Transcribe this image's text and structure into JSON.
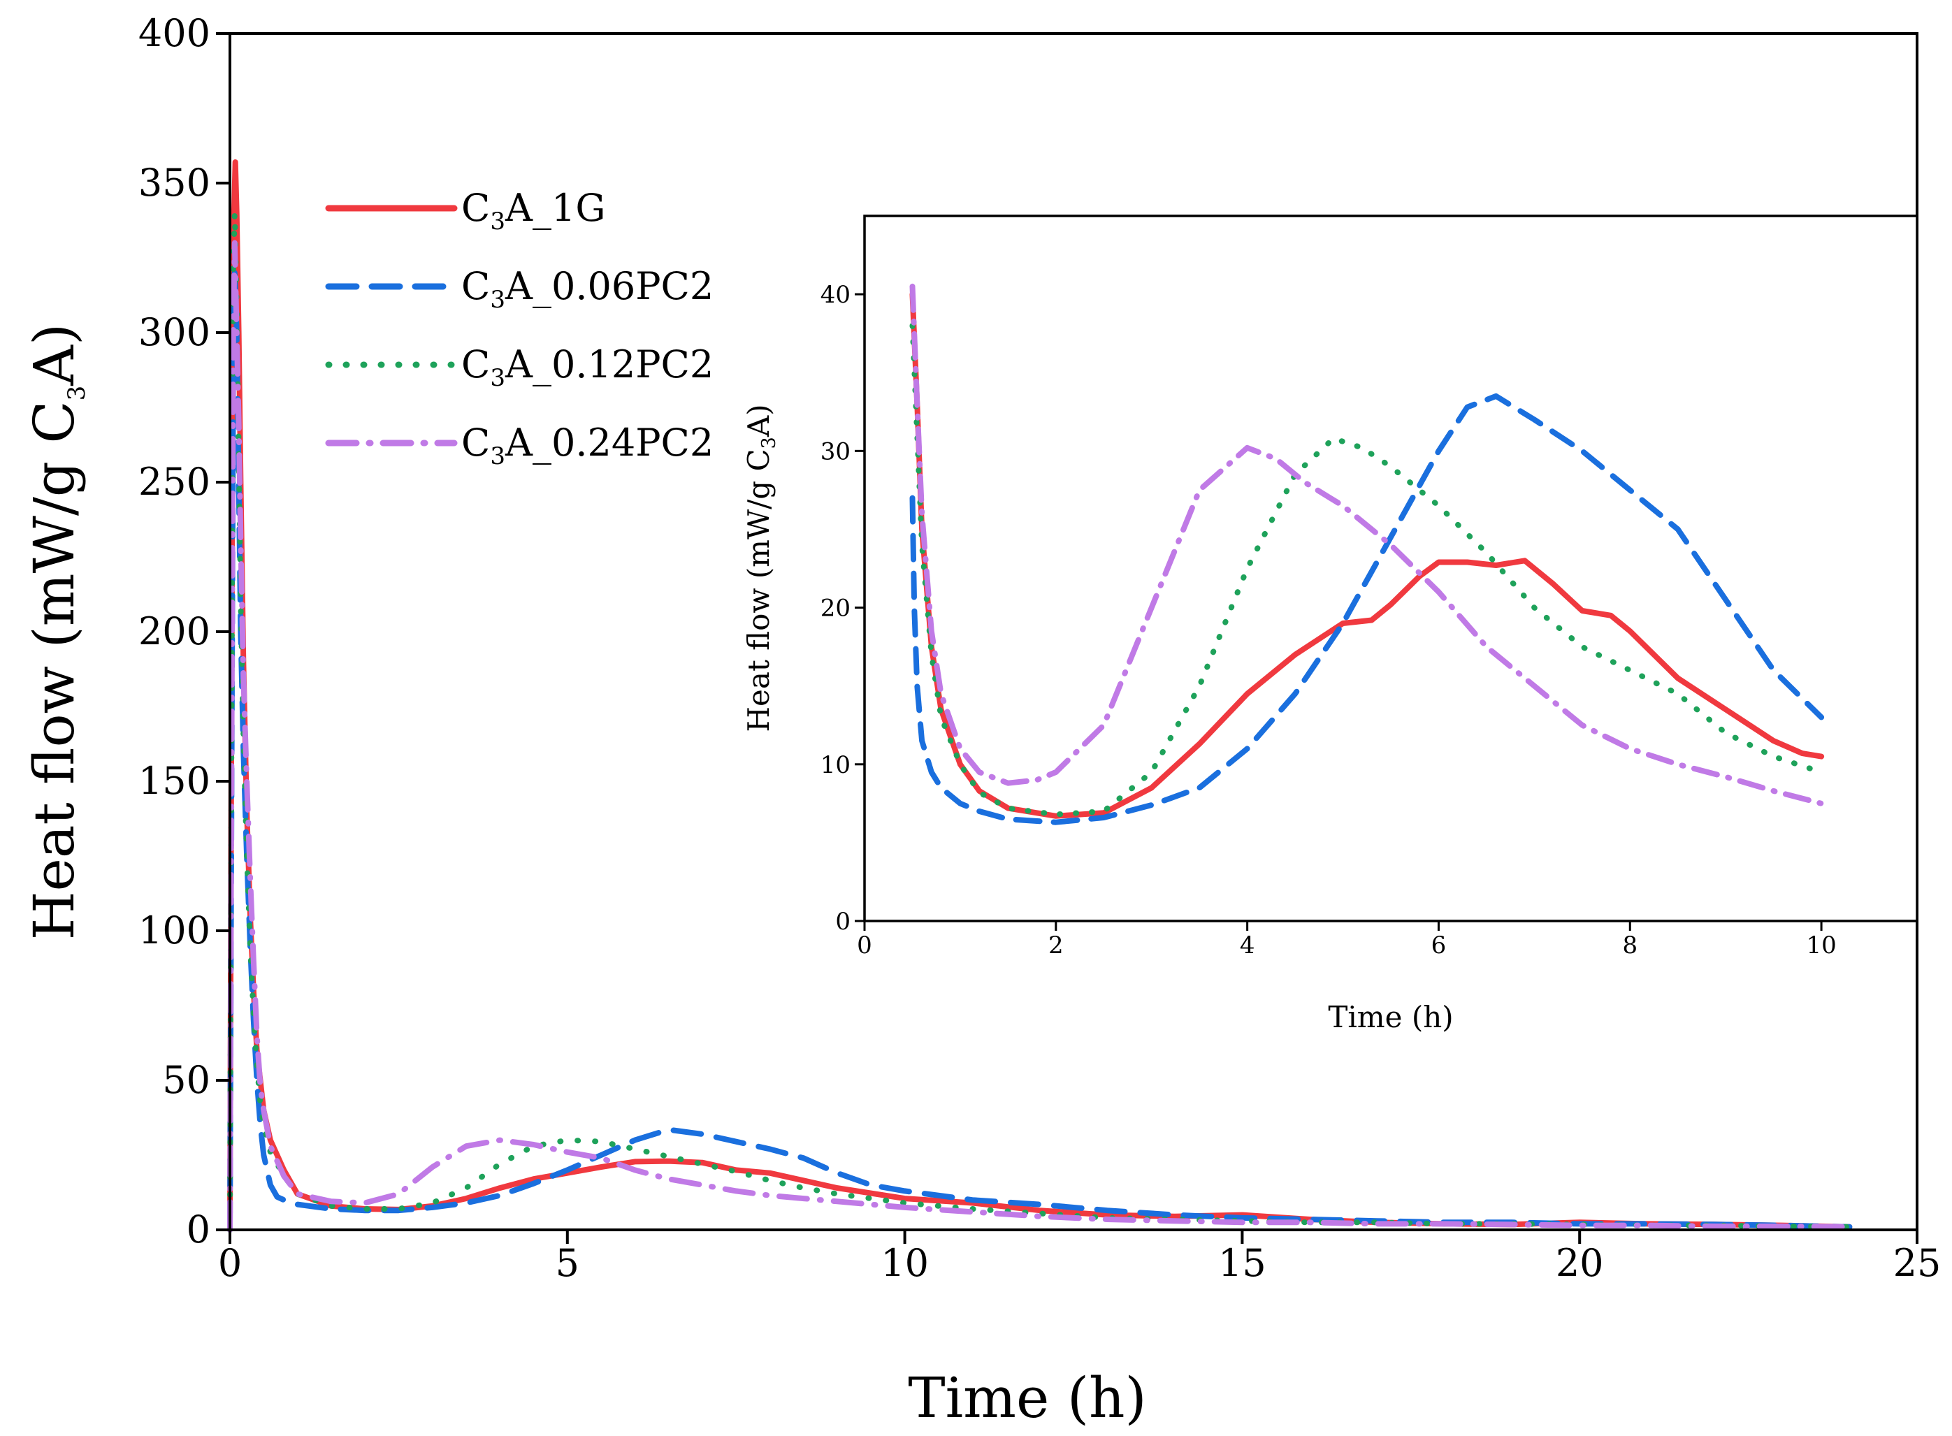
{
  "chart_data": [
    {
      "type": "line",
      "name": "main",
      "xlabel": "Time (h)",
      "ylabel": {
        "prefix": "Heat flow (mW/g C",
        "sub": "3",
        "suffix": "A)"
      },
      "xlim": [
        0,
        25
      ],
      "ylim": [
        0,
        400
      ],
      "xticks": [
        0,
        5,
        10,
        15,
        20,
        25
      ],
      "yticks": [
        0,
        50,
        100,
        150,
        200,
        250,
        300,
        350,
        400
      ],
      "grid": false,
      "legend_position": "upper-left",
      "series": [
        {
          "name": "C3A_1G",
          "label": {
            "pre": "C",
            "sub": "3",
            "post": "A_1G"
          },
          "color": "#f0393f",
          "style": "solid",
          "x": [
            0,
            0.02,
            0.05,
            0.08,
            0.1,
            0.13,
            0.16,
            0.2,
            0.25,
            0.3,
            0.35,
            0.4,
            0.5,
            0.6,
            0.8,
            1,
            1.5,
            2,
            2.5,
            3,
            3.5,
            4,
            4.5,
            5,
            5.5,
            6,
            6.5,
            7,
            7.5,
            8,
            9,
            10,
            11,
            12,
            13,
            14,
            15,
            16,
            17,
            18,
            19,
            20,
            21,
            22,
            23,
            24
          ],
          "y": [
            0,
            150,
            330,
            357,
            340,
            300,
            250,
            190,
            140,
            105,
            80,
            60,
            40,
            30,
            20,
            12,
            8,
            7,
            6.8,
            8,
            10.5,
            14,
            17,
            19,
            21,
            22.8,
            23,
            22.5,
            20,
            19,
            14,
            10.5,
            9,
            6.5,
            5,
            4.5,
            5,
            3.5,
            2.5,
            2,
            1.8,
            2.5,
            2,
            1.8,
            1.5,
            1
          ]
        },
        {
          "name": "C3A_0.06PC2",
          "label": {
            "pre": "C",
            "sub": "3",
            "post": "A_0.06PC2"
          },
          "color": "#1a6fde",
          "style": "dashed",
          "x": [
            0,
            0.02,
            0.05,
            0.07,
            0.1,
            0.13,
            0.16,
            0.2,
            0.25,
            0.3,
            0.35,
            0.4,
            0.45,
            0.5,
            0.55,
            0.6,
            0.7,
            0.8,
            1,
            1.5,
            2,
            2.5,
            3,
            3.5,
            4,
            4.5,
            5,
            5.5,
            6,
            6.5,
            7,
            7.5,
            8,
            8.5,
            9,
            9.5,
            10,
            11,
            12,
            13,
            14,
            15,
            16,
            17,
            18,
            19,
            20,
            21,
            22,
            23,
            24
          ],
          "y": [
            0,
            120,
            290,
            320,
            300,
            250,
            200,
            160,
            125,
            95,
            70,
            50,
            35,
            25,
            20,
            15,
            11,
            10,
            8.5,
            7,
            6.5,
            6.5,
            7.5,
            9,
            11.5,
            15.5,
            20,
            25,
            30,
            33.5,
            32,
            29.5,
            27,
            24,
            19,
            15,
            13,
            10,
            8.5,
            6.5,
            5,
            4,
            3.5,
            3,
            2.5,
            2.5,
            2,
            2,
            1.8,
            1.5,
            1
          ]
        },
        {
          "name": "C3A_0.12PC2",
          "label": {
            "pre": "C",
            "sub": "3",
            "post": "A_0.12PC2"
          },
          "color": "#1ea25a",
          "style": "dotted",
          "x": [
            0,
            0.02,
            0.05,
            0.07,
            0.1,
            0.13,
            0.16,
            0.2,
            0.25,
            0.3,
            0.35,
            0.4,
            0.45,
            0.5,
            0.6,
            0.8,
            1,
            1.5,
            2,
            2.5,
            3,
            3.5,
            4,
            4.5,
            5,
            5.5,
            6,
            6.5,
            7,
            7.5,
            8,
            8.5,
            9,
            9.5,
            10,
            11,
            12,
            13,
            14,
            15,
            16,
            17,
            18,
            19,
            20,
            21,
            22,
            23,
            24
          ],
          "y": [
            0,
            140,
            320,
            340,
            310,
            260,
            210,
            165,
            125,
            95,
            72,
            55,
            42,
            35,
            26,
            18,
            12,
            8,
            7,
            7,
            9,
            14,
            22,
            28,
            30,
            29.5,
            27,
            24.5,
            22,
            19.5,
            16.5,
            14,
            12,
            10.5,
            9,
            7,
            5.5,
            4,
            3.5,
            3,
            2.5,
            2.5,
            2,
            2,
            1.8,
            1.5,
            1.5,
            1.2,
            1
          ]
        },
        {
          "name": "C3A_0.24PC2",
          "label": {
            "pre": "C",
            "sub": "3",
            "post": "A_0.24PC2"
          },
          "color": "#c07ae6",
          "style": "dashdot",
          "x": [
            0,
            0.02,
            0.05,
            0.07,
            0.1,
            0.13,
            0.16,
            0.2,
            0.25,
            0.3,
            0.35,
            0.4,
            0.45,
            0.5,
            0.6,
            0.8,
            1,
            1.5,
            2,
            2.5,
            3,
            3.5,
            4,
            4.5,
            5,
            5.5,
            6,
            6.5,
            7,
            7.5,
            8,
            8.5,
            9,
            9.5,
            10,
            11,
            12,
            13,
            14,
            15,
            16,
            17,
            18,
            19,
            20,
            21,
            22,
            23,
            24
          ],
          "y": [
            0,
            130,
            300,
            330,
            300,
            270,
            230,
            185,
            150,
            118,
            90,
            65,
            48,
            40,
            28,
            18,
            12,
            9.5,
            9,
            12,
            21,
            28,
            30,
            28.5,
            26,
            24,
            20,
            17,
            15,
            13,
            11.5,
            10.5,
            9.5,
            8.5,
            7.5,
            6,
            4.5,
            3.5,
            3,
            2.5,
            2.5,
            2,
            2,
            1.8,
            1.5,
            1.5,
            1.2,
            1.2,
            1
          ]
        }
      ]
    },
    {
      "type": "line",
      "name": "inset",
      "xlabel": "Time (h)",
      "ylabel": {
        "prefix": "Heat flow (mW/g C",
        "sub": "3",
        "suffix": "A)"
      },
      "xlim": [
        0,
        11
      ],
      "ylim": [
        0,
        45
      ],
      "xticks": [
        0,
        2,
        4,
        6,
        8,
        10
      ],
      "yticks": [
        0,
        10,
        20,
        30,
        40
      ],
      "grid": false,
      "series": [
        {
          "name": "C3A_1G",
          "color": "#f0393f",
          "style": "solid",
          "x": [
            0.5,
            0.55,
            0.6,
            0.7,
            0.8,
            1.0,
            1.2,
            1.5,
            2.0,
            2.5,
            3.0,
            3.5,
            4.0,
            4.5,
            5.0,
            5.3,
            5.5,
            5.8,
            6.0,
            6.3,
            6.6,
            6.9,
            7.2,
            7.5,
            7.8,
            8.0,
            8.5,
            9.0,
            9.5,
            9.8,
            10.0
          ],
          "y": [
            40,
            33,
            25,
            17.5,
            13.5,
            10,
            8.3,
            7.2,
            6.7,
            6.9,
            8.5,
            11.3,
            14.5,
            17,
            19,
            19.2,
            20.2,
            22,
            22.9,
            22.9,
            22.7,
            23,
            21.5,
            19.8,
            19.5,
            18.5,
            15.5,
            13.5,
            11.5,
            10.7,
            10.5
          ]
        },
        {
          "name": "C3A_0.06PC2",
          "color": "#1a6fde",
          "style": "dashed",
          "x": [
            0.5,
            0.52,
            0.55,
            0.6,
            0.7,
            0.8,
            1.0,
            1.2,
            1.5,
            2.0,
            2.5,
            3.0,
            3.5,
            4.0,
            4.5,
            5.0,
            5.5,
            6.0,
            6.3,
            6.6,
            7.0,
            7.5,
            8.0,
            8.5,
            9.0,
            9.5,
            10.0
          ],
          "y": [
            27,
            20,
            15,
            11.5,
            9.5,
            8.5,
            7.5,
            7,
            6.5,
            6.3,
            6.6,
            7.4,
            8.5,
            11,
            14.5,
            19,
            24.5,
            30,
            32.8,
            33.5,
            32,
            30,
            27.5,
            25,
            20.5,
            16,
            13
          ]
        },
        {
          "name": "C3A_0.12PC2",
          "color": "#1ea25a",
          "style": "dotted",
          "x": [
            0.5,
            0.55,
            0.6,
            0.7,
            0.8,
            1.0,
            1.2,
            1.5,
            2.0,
            2.5,
            3.0,
            3.5,
            4.0,
            4.5,
            4.9,
            5.2,
            5.5,
            6.0,
            6.5,
            7.0,
            7.5,
            8.0,
            8.5,
            9.0,
            9.5,
            10.0
          ],
          "y": [
            38,
            31,
            24,
            17,
            13,
            10,
            8.2,
            7.2,
            6.8,
            7,
            9.5,
            15,
            22.5,
            28.5,
            30.8,
            30.2,
            29,
            26.5,
            23.5,
            20,
            17.5,
            16,
            14.5,
            12,
            10.5,
            9.5
          ]
        },
        {
          "name": "C3A_0.24PC2",
          "color": "#c07ae6",
          "style": "dashdot",
          "x": [
            0.5,
            0.55,
            0.6,
            0.7,
            0.8,
            1.0,
            1.2,
            1.5,
            1.8,
            2.0,
            2.5,
            3.0,
            3.5,
            4.0,
            4.3,
            4.6,
            5.0,
            5.5,
            6.0,
            6.5,
            7.0,
            7.5,
            8.0,
            8.5,
            9.0,
            9.5,
            10.0
          ],
          "y": [
            40.5,
            33,
            26,
            18.5,
            14.5,
            11,
            9.5,
            8.8,
            9,
            9.5,
            12.5,
            20,
            27.5,
            30.2,
            29.5,
            28,
            26.5,
            24,
            21,
            17.5,
            15,
            12.5,
            11,
            10,
            9.2,
            8.3,
            7.5
          ]
        }
      ]
    }
  ]
}
